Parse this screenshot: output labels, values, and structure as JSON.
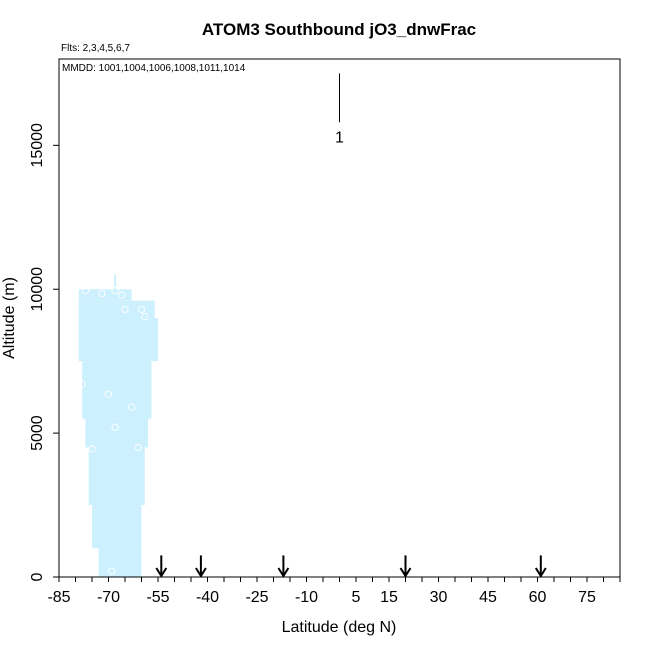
{
  "chart_data": {
    "type": "scatter",
    "title": "ATOM3 Southbound jO3_dnwFrac",
    "subtitle_flights": "Flts: 2,3,4,5,6,7",
    "subtitle_dates": "MMDD: 1001,1004,1006,1008,1011,1014",
    "xlabel": "Latitude (deg N)",
    "ylabel": "Altitude (m)",
    "xlim": [
      -85,
      85
    ],
    "ylim": [
      0,
      18000
    ],
    "x_ticks": [
      -85,
      -70,
      -55,
      -40,
      -25,
      -10,
      5,
      15,
      30,
      45,
      60,
      75
    ],
    "y_ticks": [
      0,
      5000,
      10000,
      15000
    ],
    "fill_color": "#cdf0ff",
    "profile_band": [
      {
        "alt": 0,
        "lat_min": -73,
        "lat_max": -60
      },
      {
        "alt": 1000,
        "lat_min": -75,
        "lat_max": -60
      },
      {
        "alt": 2500,
        "lat_min": -76,
        "lat_max": -59
      },
      {
        "alt": 4500,
        "lat_min": -77,
        "lat_max": -58
      },
      {
        "alt": 5500,
        "lat_min": -78,
        "lat_max": -57
      },
      {
        "alt": 7500,
        "lat_min": -79,
        "lat_max": -55
      },
      {
        "alt": 9000,
        "lat_min": -79,
        "lat_max": -56
      },
      {
        "alt": 9500,
        "lat_min": -79,
        "lat_max": -56
      },
      {
        "alt": 9600,
        "lat_min": -79,
        "lat_max": -63
      },
      {
        "alt": 10000,
        "lat_min": -78,
        "lat_max": -64
      }
    ],
    "points": [
      {
        "lat": -77,
        "alt": 9950
      },
      {
        "lat": -72,
        "alt": 9850
      },
      {
        "lat": -68,
        "alt": 9950
      },
      {
        "lat": -66,
        "alt": 9800
      },
      {
        "lat": -65,
        "alt": 9300
      },
      {
        "lat": -60,
        "alt": 9300
      },
      {
        "lat": -59,
        "alt": 9050
      },
      {
        "lat": -78,
        "alt": 6700
      },
      {
        "lat": -70,
        "alt": 6350
      },
      {
        "lat": -68,
        "alt": 5200
      },
      {
        "lat": -63,
        "alt": 5900
      },
      {
        "lat": -61,
        "alt": 4500
      },
      {
        "lat": -75,
        "alt": 4450
      },
      {
        "lat": -75,
        "alt": 900
      },
      {
        "lat": -69,
        "alt": 200
      }
    ],
    "spikes": [
      {
        "lat": -68,
        "alt_min": 10000,
        "alt_max": 10500
      }
    ],
    "annotations": [
      {
        "text": "1",
        "lat": 0,
        "alt_top": 17500,
        "alt_bottom": 15800,
        "label_alt": 15300
      }
    ],
    "arrows": [
      -54,
      -42,
      -17,
      20,
      61
    ],
    "arrow_top_alt": 750
  }
}
